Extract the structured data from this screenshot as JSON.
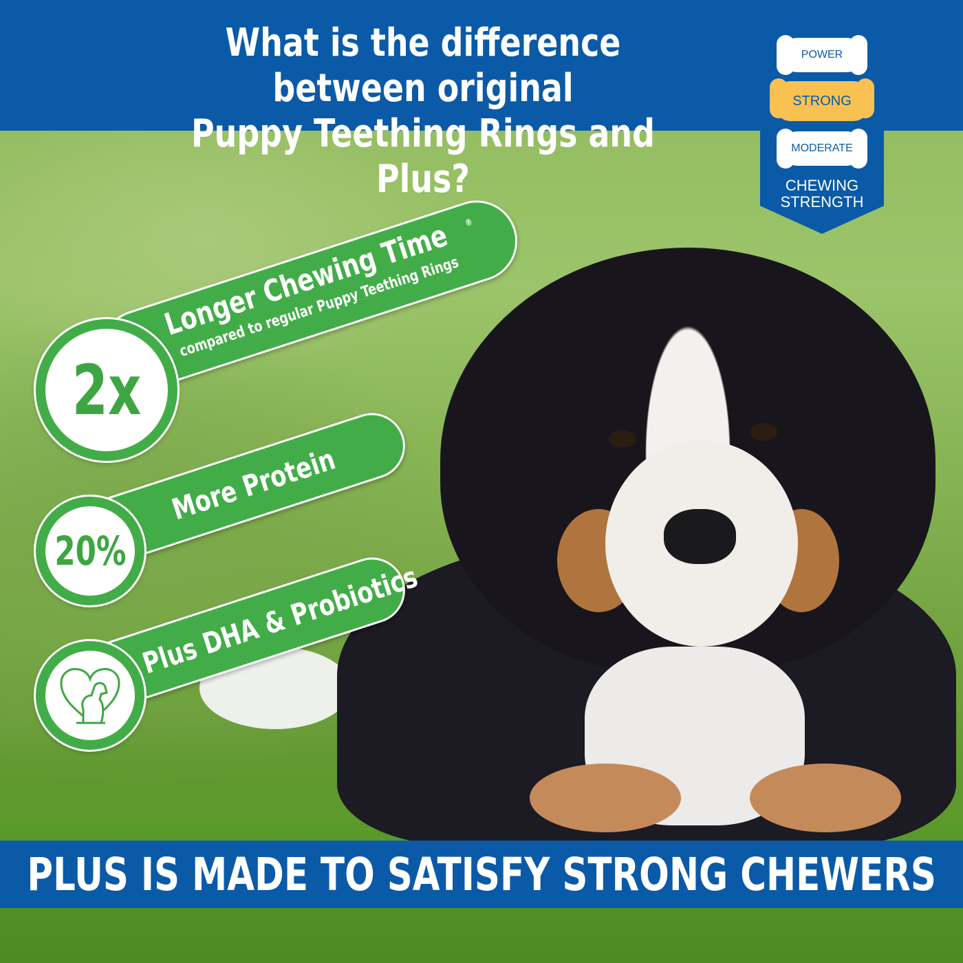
{
  "header": {
    "title_line1": "What is the difference between original",
    "title_line2": "Puppy Teething Rings and Plus?"
  },
  "chewing_strength": {
    "levels": [
      "POWER",
      "STRONG",
      "MODERATE"
    ],
    "selected": "STRONG",
    "label_line1": "CHEWING",
    "label_line2": "STRENGTH"
  },
  "features": [
    {
      "badge": "2x",
      "title": "Longer Chewing Time",
      "subtitle": "compared to regular Puppy Teething Rings",
      "mark": "®"
    },
    {
      "badge": "20%",
      "title": "More Protein"
    },
    {
      "badge_icon": "heart-dog-icon",
      "title": "Plus DHA & Probiotics"
    }
  ],
  "footer": {
    "tagline": "PLUS IS MADE TO SATISFY STRONG CHEWERS"
  },
  "colors": {
    "brand_blue": "#0b5aa7",
    "green": "#42ad48",
    "gold": "#f9c152"
  }
}
